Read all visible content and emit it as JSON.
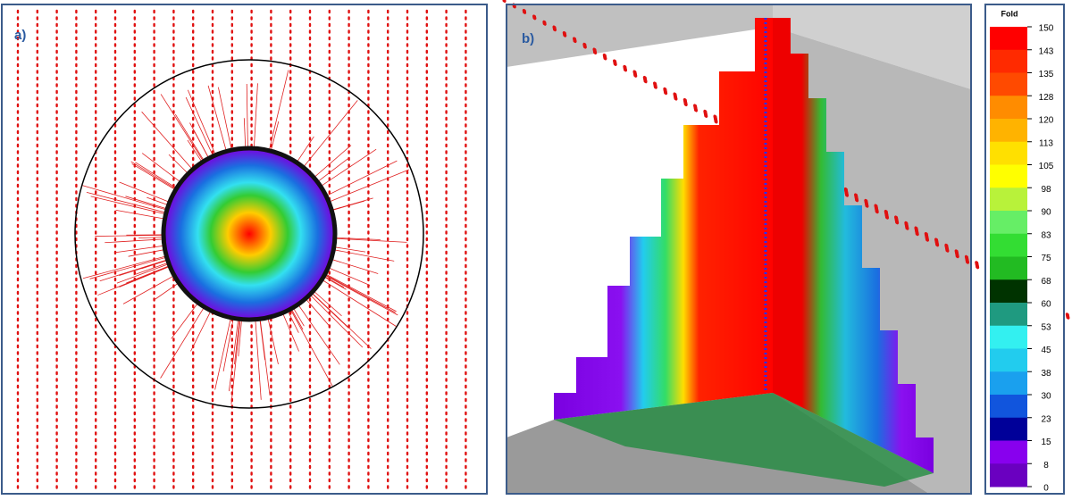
{
  "panels": [
    {
      "label": "a)"
    },
    {
      "label": "b)"
    }
  ],
  "colorbar": {
    "title": "Fold",
    "ticks": [
      150,
      143,
      135,
      128,
      120,
      113,
      105,
      98,
      90,
      83,
      75,
      68,
      60,
      53,
      45,
      38,
      30,
      23,
      15,
      8,
      0
    ],
    "colors": [
      "#ff0000",
      "#ff2a00",
      "#ff4a00",
      "#ff8c00",
      "#ffb300",
      "#ffe000",
      "#ffff00",
      "#b8f23a",
      "#66ee66",
      "#33dd33",
      "#22bb22",
      "#003300",
      "#1f9a80",
      "#33f0f0",
      "#22ccee",
      "#1aa0ee",
      "#1155dd",
      "#000099",
      "#8800ee",
      "#6a00c0",
      "#400070"
    ]
  }
}
